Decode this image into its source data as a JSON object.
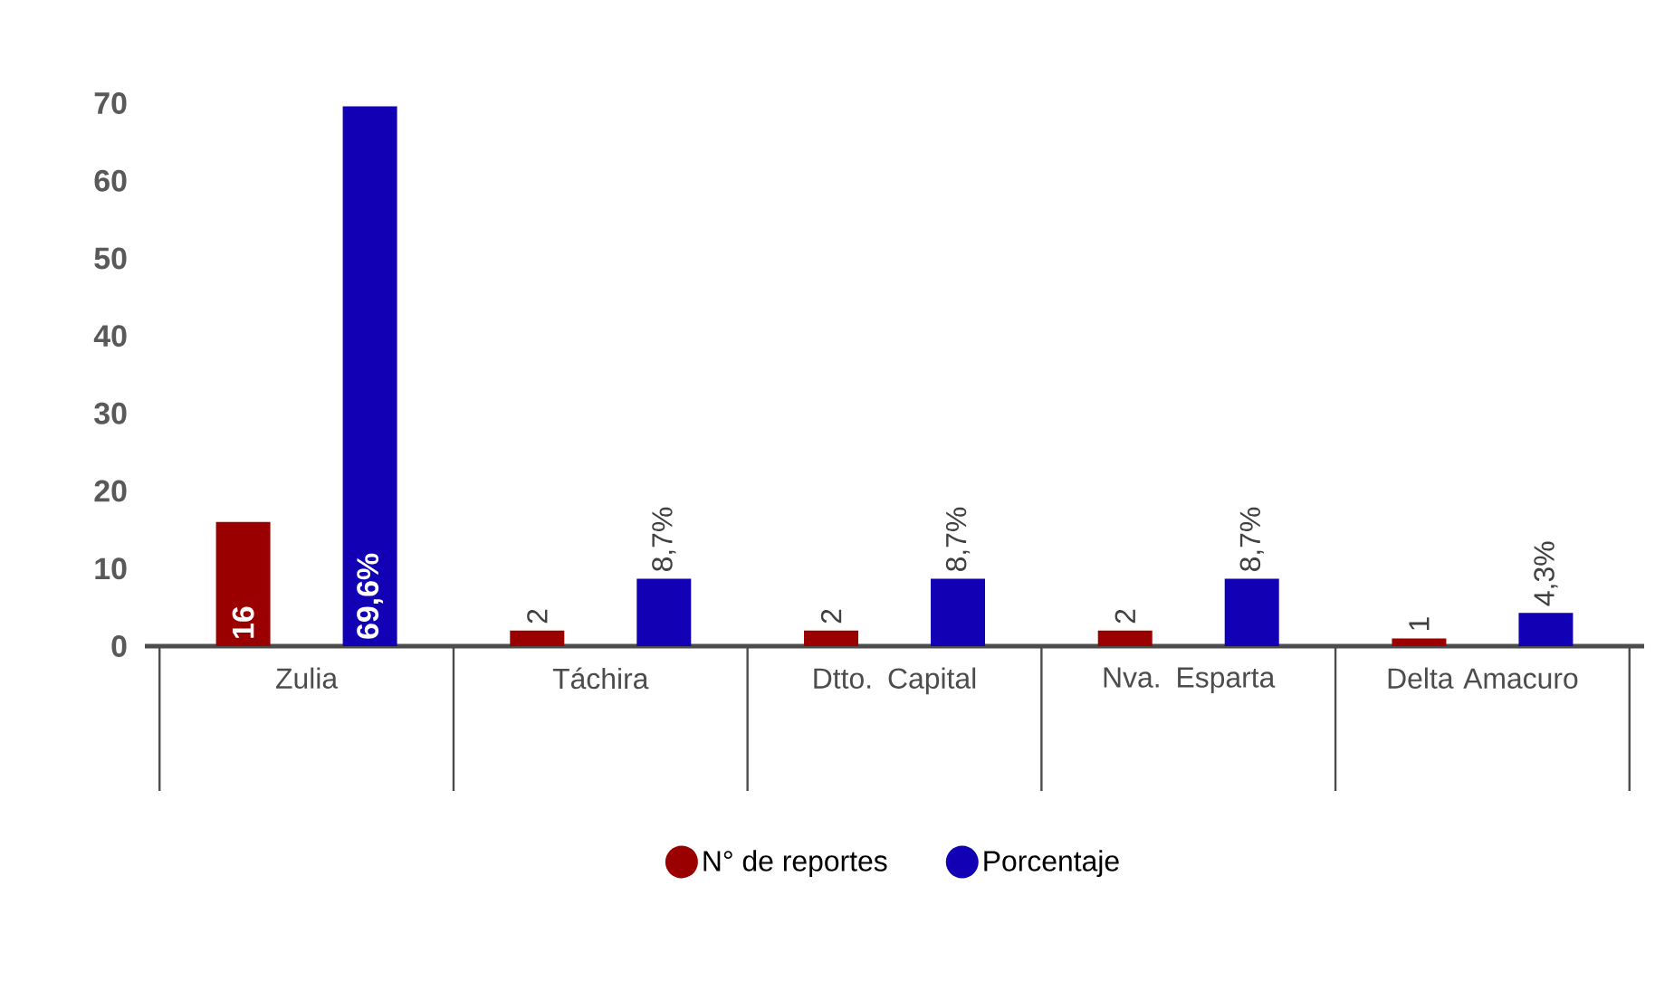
{
  "chart_data": {
    "type": "bar",
    "categories": [
      "Zulia",
      "Táchira",
      "Dtto. Capital",
      "Nva. Esparta",
      "Delta Amacuro"
    ],
    "series": [
      {
        "name": "N° de reportes",
        "color": "#9b0000",
        "values": [
          16,
          2,
          2,
          2,
          1
        ],
        "value_labels": [
          "16",
          "2",
          "2",
          "2",
          "1"
        ]
      },
      {
        "name": "Porcentaje",
        "color": "#1200b4",
        "values": [
          69.6,
          8.7,
          8.7,
          8.7,
          4.3
        ],
        "value_labels": [
          "69,6%",
          "8,7%",
          "8,7%",
          "8,7%",
          "4,3%"
        ]
      }
    ],
    "ylim": [
      0,
      70
    ],
    "yticks": [
      0,
      10,
      20,
      30,
      40,
      50,
      60,
      70
    ],
    "legend": "bottom"
  }
}
